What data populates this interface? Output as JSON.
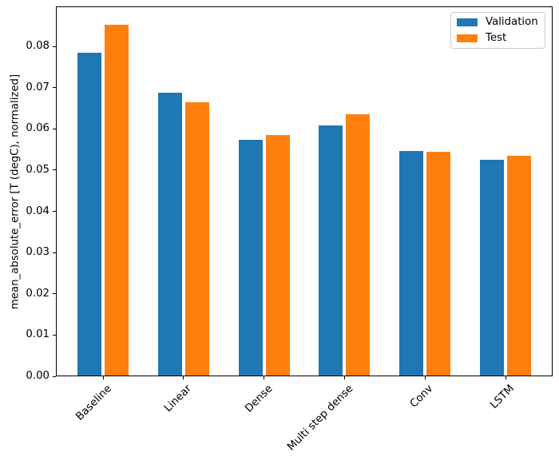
{
  "figure": {
    "background": "#ffffff",
    "text_color": "#000000",
    "spine_color": "#000000"
  },
  "chart_data": {
    "type": "bar",
    "title": "",
    "xlabel": "",
    "ylabel": "mean_absolute_error [T (degC), normalized]",
    "categories": [
      "Baseline",
      "Linear",
      "Dense",
      "Multi step dense",
      "Conv",
      "LSTM"
    ],
    "series": [
      {
        "name": "Validation",
        "color": "#1f77b4",
        "values": [
          0.0785,
          0.0688,
          0.0574,
          0.0608,
          0.0546,
          0.0525
        ]
      },
      {
        "name": "Test",
        "color": "#ff7f0e",
        "values": [
          0.0852,
          0.0665,
          0.0585,
          0.0635,
          0.0544,
          0.0535
        ]
      }
    ],
    "ylim": [
      0,
      0.0897
    ],
    "yticks": [
      0.0,
      0.01,
      0.02,
      0.03,
      0.04,
      0.05,
      0.06,
      0.07,
      0.08
    ],
    "ytick_labels": [
      "0.00",
      "0.01",
      "0.02",
      "0.03",
      "0.04",
      "0.05",
      "0.06",
      "0.07",
      "0.08"
    ],
    "x_tick_rotation": 45,
    "grid": false,
    "legend": {
      "position": "upper right",
      "entries": [
        "Validation",
        "Test"
      ]
    }
  }
}
